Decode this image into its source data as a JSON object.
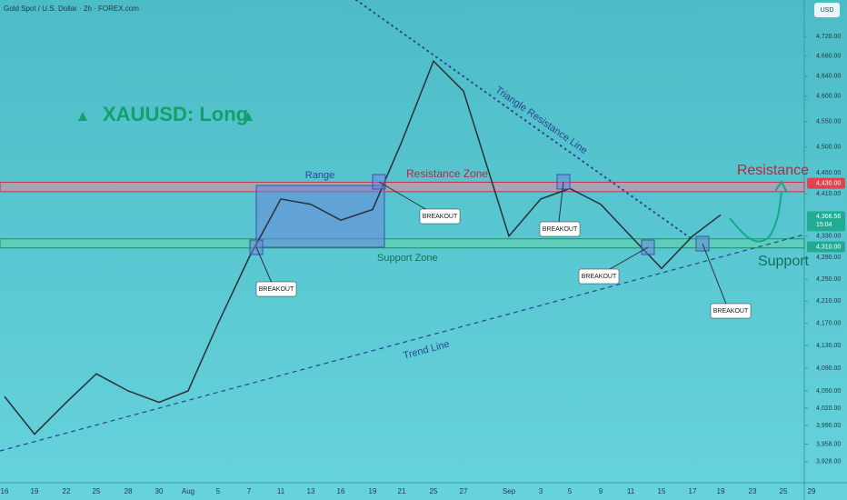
{
  "chart_data": {
    "type": "line",
    "title": "Gold Spot / U.S. Dollar · 2h · FOREX.com",
    "currency": "USD",
    "categories": [
      "16",
      "19",
      "22",
      "25",
      "28",
      "30",
      "Aug",
      "5",
      "7",
      "11",
      "13",
      "16",
      "19",
      "21",
      "25",
      "27",
      "Sep",
      "3",
      "5",
      "9",
      "11",
      "15",
      "17",
      "19",
      "23",
      "25",
      "29"
    ],
    "series": [
      {
        "name": "XAUUSD",
        "color": "#2b2f36",
        "values": [
          4040,
          3975,
          4030,
          4080,
          4050,
          4030,
          4050,
          4170,
          4290,
          4400,
          4390,
          4360,
          4380,
          4510,
          4670,
          4610,
          4330,
          4400,
          4420,
          4390,
          4330,
          4270,
          4330,
          4370,
          null,
          null,
          null
        ]
      }
    ],
    "log_scale": true,
    "ylim": [
      3894,
      4795
    ],
    "yticks": [
      {
        "value": 4720,
        "label": "4,720.00"
      },
      {
        "value": 4680,
        "label": "4,680.00"
      },
      {
        "value": 4640,
        "label": "4,640.00"
      },
      {
        "value": 4600,
        "label": "4,600.00"
      },
      {
        "value": 4550,
        "label": "4,550.00"
      },
      {
        "value": 4500,
        "label": "4,500.00"
      },
      {
        "value": 4450,
        "label": "4,450.00"
      },
      {
        "value": 4410,
        "label": "4,410.00"
      },
      {
        "value": 4330,
        "label": "4,330.00"
      },
      {
        "value": 4290,
        "label": "4,290.00"
      },
      {
        "value": 4250,
        "label": "4,250.00"
      },
      {
        "value": 4210,
        "label": "4,210.00"
      },
      {
        "value": 4170,
        "label": "4,170.00"
      },
      {
        "value": 4130,
        "label": "4,130.00"
      },
      {
        "value": 4090,
        "label": "4,090.00"
      },
      {
        "value": 4050,
        "label": "4,050.00"
      },
      {
        "value": 4020,
        "label": "4,020.00"
      },
      {
        "value": 3990,
        "label": "3,990.00"
      },
      {
        "value": 3958,
        "label": "3,958.00"
      },
      {
        "value": 3928,
        "label": "3,928.00"
      }
    ],
    "price_labels": [
      {
        "value": 4430,
        "label": "4,430.00",
        "color": "#e0424f"
      },
      {
        "value": 4366.56,
        "label": "4,366.56",
        "color": "#22ab94"
      },
      {
        "value": 4310,
        "label": "4,310.00",
        "color": "#22ab94"
      }
    ],
    "countdown": "15:04",
    "zones": [
      {
        "name": "Resistance Zone",
        "ylim": [
          4414,
          4432
        ],
        "color": "#e88aa0"
      },
      {
        "name": "Support Zone",
        "ylim": [
          4308,
          4325
        ],
        "color": "#62d1a8"
      }
    ],
    "annotations": {
      "symbol": "XAUUSD: Long",
      "range": "Range",
      "triangle": "Triangle Resistance Line",
      "trend": "Trend Line",
      "resistance": "Resistance",
      "support": "Support",
      "breakouts": [
        "BREAKOUT",
        "BREAKOUT",
        "BREAKOUT",
        "BREAKOUT",
        "BREAKOUT"
      ]
    }
  }
}
